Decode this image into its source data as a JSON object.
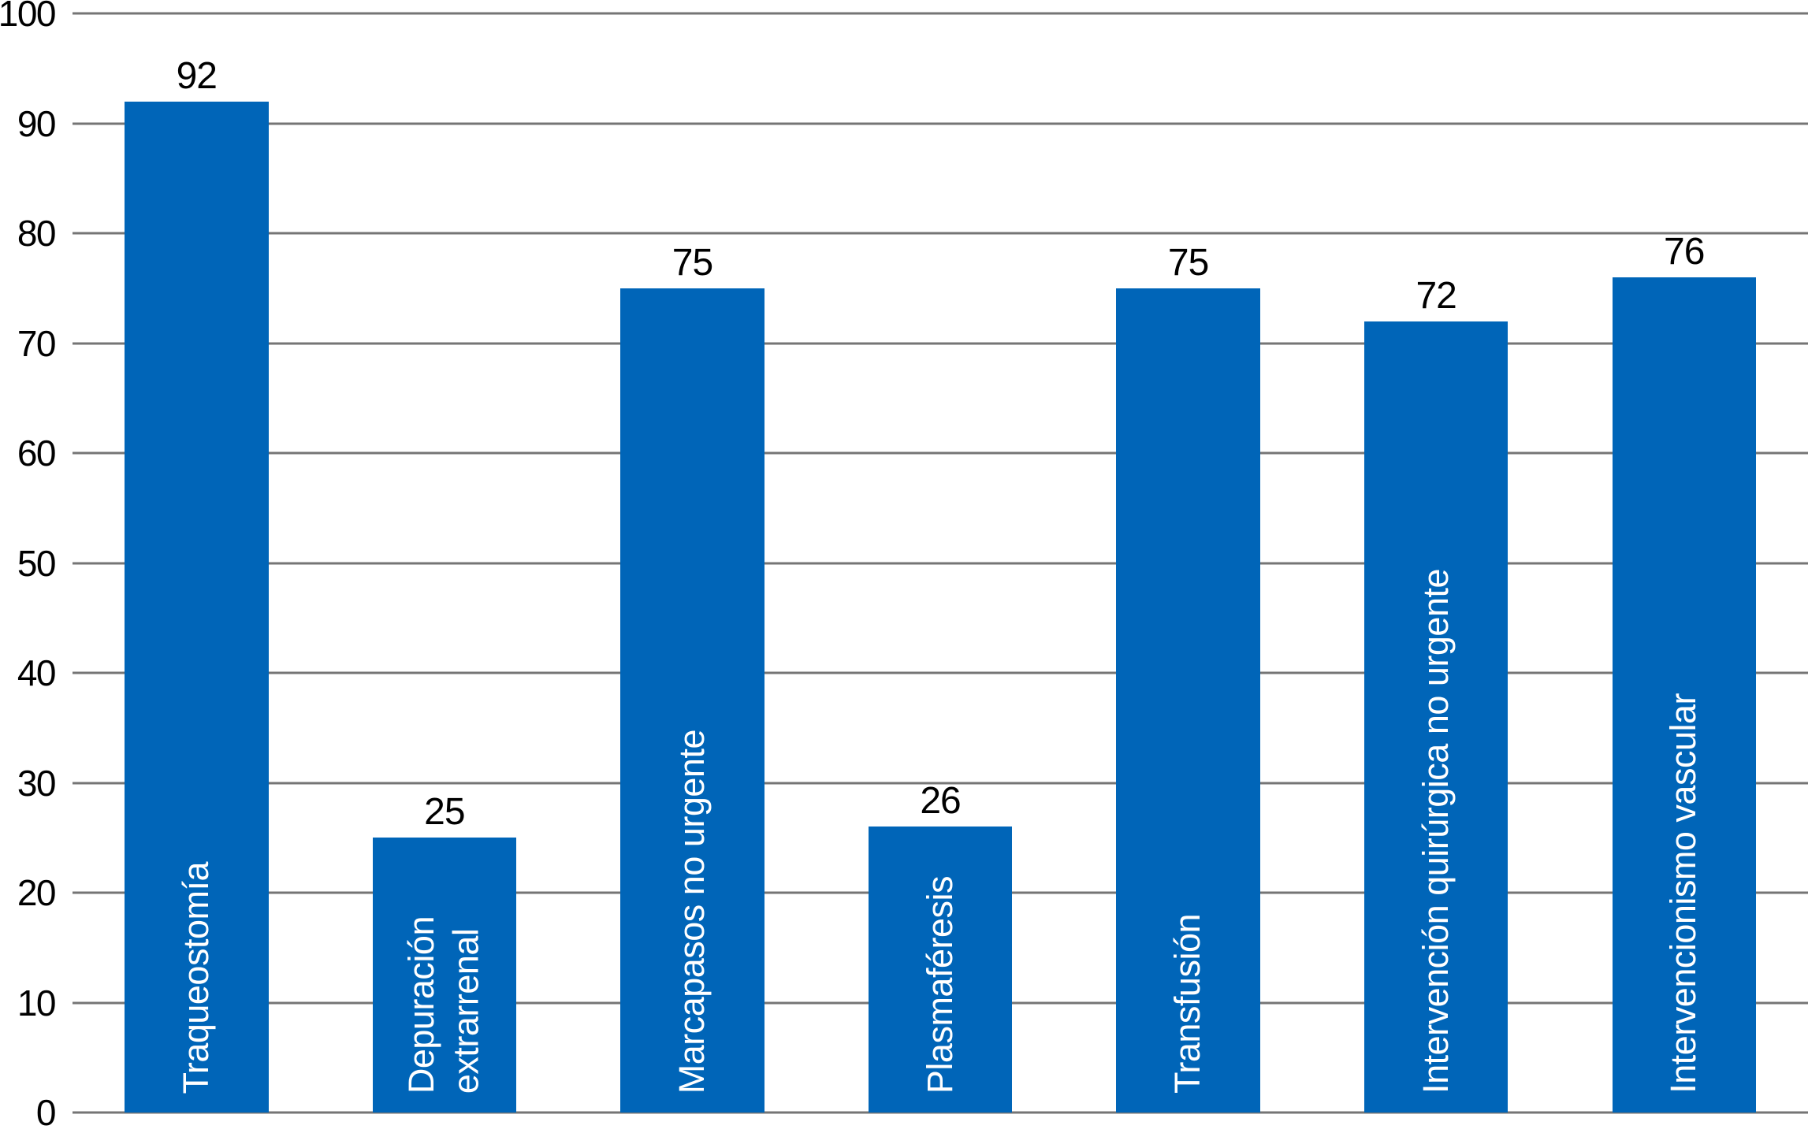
{
  "chart_data": {
    "type": "bar",
    "title": "",
    "xlabel": "",
    "ylabel": "",
    "categories": [
      "Traqueostomía",
      "Depuración\nextrarrenal",
      "Marcapasos no urgente",
      "Plasmaféresis",
      "Transfusión",
      "Intervención quirúrgica no urgente",
      "Intervencionismo vascular"
    ],
    "values": [
      92,
      25,
      75,
      26,
      75,
      72,
      76
    ],
    "value_labels": [
      "92",
      "25",
      "75",
      "26",
      "75",
      "72",
      "76"
    ],
    "ylim": [
      0,
      100
    ],
    "yticks": [
      0,
      10,
      20,
      30,
      40,
      50,
      60,
      70,
      80,
      90,
      100
    ],
    "grid": true,
    "legend": "none",
    "colors": {
      "bar": "#0065B8",
      "gridline": "#757575",
      "value_label": "#000000",
      "category_label": "#FFFFFF",
      "background": "#FFFFFF"
    }
  }
}
